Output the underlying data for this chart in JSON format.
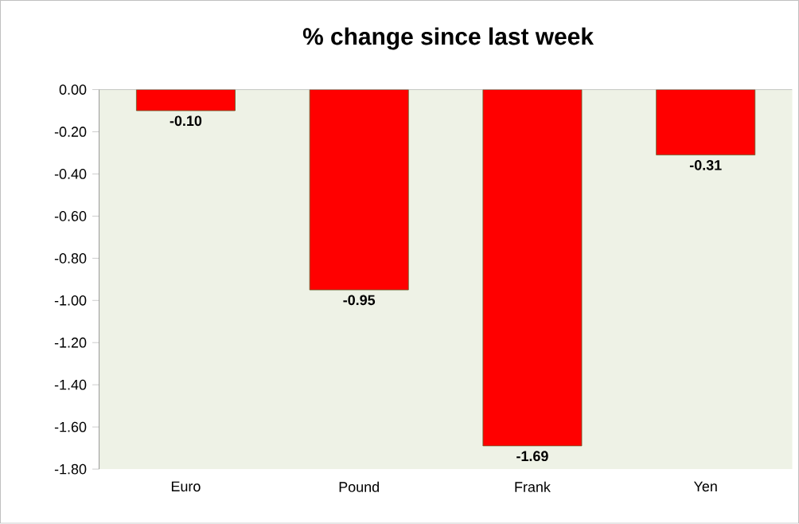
{
  "chart_data": {
    "type": "bar",
    "title": "% change since last week",
    "categories": [
      "Euro",
      "Pound",
      "Frank",
      "Yen"
    ],
    "values": [
      -0.1,
      -0.95,
      -1.69,
      -0.31
    ],
    "value_labels": [
      "-0.10",
      "-0.95",
      "-1.69",
      "-0.31"
    ],
    "color": "#ff0000",
    "ylim": [
      -1.8,
      0
    ],
    "yticks": [
      {
        "value": 0,
        "label": "0.00"
      },
      {
        "value": -0.2,
        "label": "-0.20"
      },
      {
        "value": -0.4,
        "label": "-0.40"
      },
      {
        "value": -0.6,
        "label": "-0.60"
      },
      {
        "value": -0.8,
        "label": "-0.80"
      },
      {
        "value": -1.0,
        "label": "-1.00"
      },
      {
        "value": -1.2,
        "label": "-1.20"
      },
      {
        "value": -1.4,
        "label": "-1.40"
      },
      {
        "value": -1.6,
        "label": "-1.60"
      },
      {
        "value": -1.8,
        "label": "-1.80"
      }
    ],
    "grid": false
  }
}
